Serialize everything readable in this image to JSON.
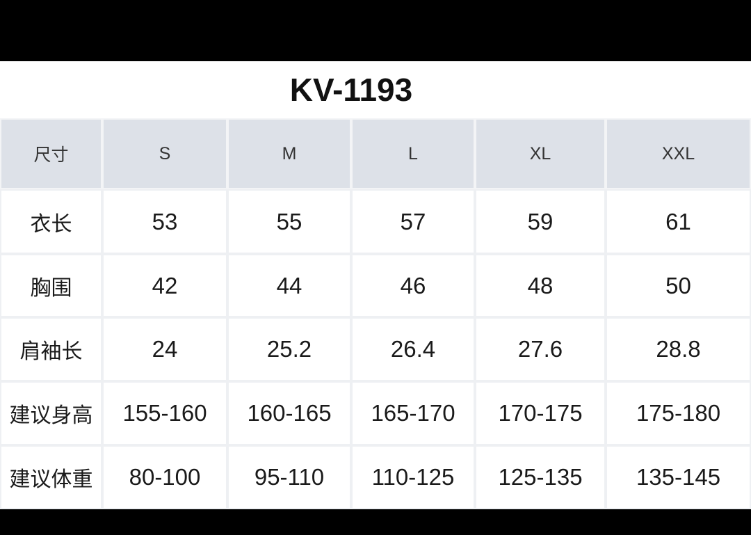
{
  "header": {
    "title": "KV-1193"
  },
  "table": {
    "columns": [
      "尺寸",
      "S",
      "M",
      "L",
      "XL",
      "XXL"
    ],
    "rows": [
      [
        "衣长",
        "53",
        "55",
        "57",
        "59",
        "61"
      ],
      [
        "胸围",
        "42",
        "44",
        "46",
        "48",
        "50"
      ],
      [
        "肩袖长",
        "24",
        "25.2",
        "26.4",
        "27.6",
        "28.8"
      ],
      [
        "建议身高",
        "155-160",
        "160-165",
        "165-170",
        "170-175",
        "175-180"
      ],
      [
        "建议体重",
        "80-100",
        "95-110",
        "110-125",
        "125-135",
        "135-145"
      ]
    ]
  }
}
